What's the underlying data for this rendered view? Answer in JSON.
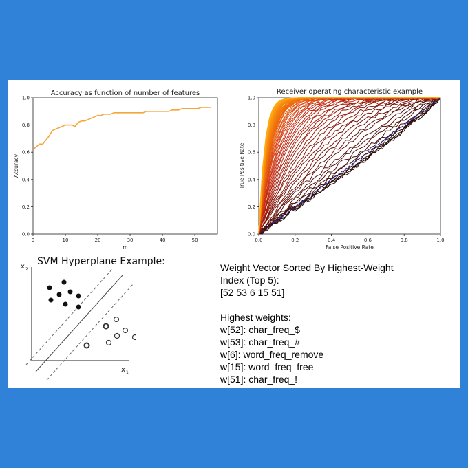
{
  "chart_data": [
    {
      "type": "line",
      "title": "Accuracy as function of number of features",
      "xlabel": "m",
      "ylabel": "Accuracy",
      "xlim": [
        0,
        57
      ],
      "ylim": [
        0,
        1.0
      ],
      "xticks": [
        "0",
        "10",
        "20",
        "30",
        "40",
        "50"
      ],
      "yticks": [
        "0.0",
        "0.2",
        "0.4",
        "0.6",
        "0.8",
        "1.0"
      ],
      "color": "#f5a53a",
      "x": [
        0,
        1,
        2,
        3,
        4,
        5,
        6,
        7,
        8,
        9,
        10,
        11,
        12,
        13,
        14,
        15,
        16,
        17,
        18,
        19,
        20,
        21,
        22,
        23,
        24,
        25,
        26,
        27,
        28,
        29,
        30,
        31,
        32,
        33,
        34,
        35,
        36,
        37,
        38,
        39,
        40,
        41,
        42,
        43,
        44,
        45,
        46,
        47,
        48,
        49,
        50,
        51,
        52,
        53,
        54,
        55
      ],
      "y": [
        0.62,
        0.64,
        0.66,
        0.66,
        0.69,
        0.72,
        0.76,
        0.77,
        0.78,
        0.79,
        0.8,
        0.8,
        0.8,
        0.79,
        0.82,
        0.83,
        0.83,
        0.84,
        0.85,
        0.86,
        0.87,
        0.87,
        0.88,
        0.88,
        0.88,
        0.89,
        0.89,
        0.89,
        0.89,
        0.89,
        0.89,
        0.89,
        0.89,
        0.89,
        0.89,
        0.9,
        0.9,
        0.9,
        0.9,
        0.9,
        0.9,
        0.9,
        0.9,
        0.91,
        0.91,
        0.91,
        0.92,
        0.92,
        0.92,
        0.92,
        0.92,
        0.92,
        0.93,
        0.93,
        0.93,
        0.93
      ]
    },
    {
      "type": "line",
      "title": "Receiver operating characteristic example",
      "xlabel": "False Positive Rate",
      "ylabel": "True Positive Rate",
      "xlim": [
        0,
        1.0
      ],
      "ylim": [
        0,
        1.0
      ],
      "xticks": [
        "0.0",
        "0.2",
        "0.4",
        "0.6",
        "0.8",
        "1.0"
      ],
      "yticks": [
        "0.0",
        "0.2",
        "0.4",
        "0.6",
        "0.8",
        "1.0"
      ],
      "diagonal_color": "#2233aa",
      "curve_count": 57
    }
  ],
  "svm": {
    "title": "SVM Hyperplane Example:",
    "x1_label": "x",
    "x1_sub": "1",
    "x2_label": "x",
    "x2_sub": "2"
  },
  "weights": {
    "heading_line1": "Weight Vector Sorted By Highest-Weight",
    "heading_line2": "Index (Top 5):",
    "index_line": "[52 53  6 15 51]",
    "subheading": "Highest weights:",
    "items": [
      "w[52]: char_freq_$",
      "w[53]: char_freq_#",
      "w[6]: word_freq_remove",
      "w[15]: word_freq_free",
      "w[51]: char_freq_!"
    ]
  }
}
